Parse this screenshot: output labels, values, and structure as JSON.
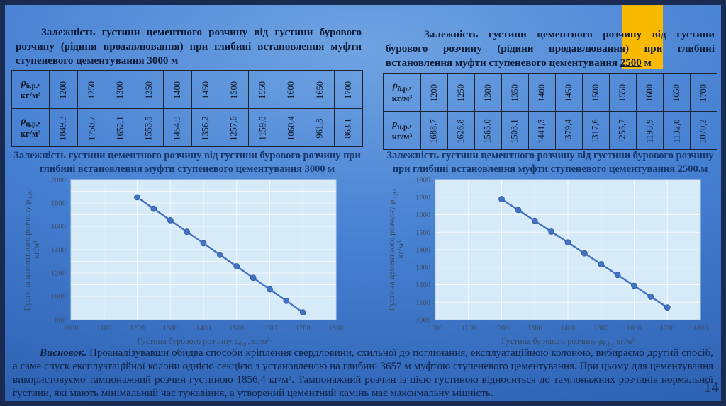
{
  "slide": {
    "page_number": "14"
  },
  "colors": {
    "accent_bar": "#F9B900",
    "frame": "#1A2B52",
    "series_line": "#4472C4",
    "plot_background": "#D7EAF7"
  },
  "left_panel": {
    "table_title": "Залежність густини цементного розчину від густини бурового розчину (рідини продавлювання) при глибині встановлення муфти ступеневого цементування 3000 м",
    "chart_title": "Залежність густини цементного розчину від густини бурового розчину при глибині встановлення муфти ступеневого цементування 3000 м"
  },
  "right_panel": {
    "table_title_before": "Залежність густини цементного розчину від густини бурового розчину (рідини продавлювання) при глибині встановлення муфти ступеневого цементування ",
    "table_title_underlined": "2500",
    "table_title_after": " м",
    "chart_title": "Залежність густини цементного розчину від густини бурового розчину при глибині встановлення муфти ступеневого цементування 2500.м"
  },
  "tables": [
    {
      "id": "left",
      "header_row1": {
        "sym": "ρ",
        "sub": "б.р.",
        "unit": "кг/м³"
      },
      "header_row2": {
        "sym": "ρ",
        "sub": "ц.р.",
        "unit": "кг/м³"
      },
      "row1_values": [
        "1200",
        "1250",
        "1300",
        "1350",
        "1400",
        "1450",
        "1500",
        "1550",
        "1600",
        "1650",
        "1700"
      ],
      "row2_values": [
        "1849,3",
        "1750,7",
        "1652,1",
        "1553,5",
        "1454,9",
        "1356,2",
        "1257,6",
        "1159,0",
        "1060,4",
        "961,8",
        "863,1"
      ]
    },
    {
      "id": "right",
      "header_row1": {
        "sym": "ρ",
        "sub": "б.р.",
        "unit": "кг/м³"
      },
      "header_row2": {
        "sym": "ρ",
        "sub": "ц.р.",
        "unit": "кг/м³"
      },
      "row1_values": [
        "1200",
        "1250",
        "1300",
        "1350",
        "1400",
        "1450",
        "1500",
        "1550",
        "1600",
        "1650",
        "1700"
      ],
      "row2_values": [
        "1688,7",
        "1626,8",
        "1565,0",
        "1503,1",
        "1441,3",
        "1379,4",
        "1317,6",
        "1255,7",
        "1193,9",
        "1132,0",
        "1070,2"
      ]
    }
  ],
  "conclusion": {
    "label": "Висновок.",
    "text": "Проаналізувавши обидва способи кріплення свердловини, схильної до поглинання, експлуатаційною колоною, вибираємо другий спосіб, а саме спуск експлуатаційної колони однією секцією з установленою на глибині 3657 м муфтою ступеневого цементування. При цьому для цементування використовуємо тампонажний розчин густиною 1856,4 кг/м³. Тампонажний розчин із цією густиною відноситься до тампонажних розчинів нормальної густини, які мають мінімальний час тужавіння, а утворений цементний камінь має максимальну міцність."
  },
  "chart_data": [
    {
      "type": "line",
      "title": "Залежність густини цементного розчину від густини бурового розчину при глибині встановлення муфти ступеневого цементування 3000 м",
      "x": [
        1200,
        1250,
        1300,
        1350,
        1400,
        1450,
        1500,
        1550,
        1600,
        1650,
        1700
      ],
      "y": [
        1849.3,
        1750.7,
        1652.1,
        1553.5,
        1454.9,
        1356.2,
        1257.6,
        1159.0,
        1060.4,
        961.8,
        863.1
      ],
      "xlim": [
        1000,
        1800
      ],
      "ylim": [
        800,
        2000
      ],
      "x_ticks": [
        1000,
        1100,
        1200,
        1300,
        1400,
        1500,
        1600,
        1700,
        1800
      ],
      "y_ticks": [
        800,
        1000,
        1200,
        1400,
        1600,
        1800,
        2000
      ],
      "grid_step": 100,
      "grid": true,
      "legend": "none",
      "xlabel_main": "Густина бурового розчину ρ",
      "xlabel_sub": "б.р.",
      "xlabel_rest": ", кг/м³",
      "ylabel_main": "Густина цементного розчину ρ",
      "ylabel_sub": "ц.р.",
      "ylabel_rest": ",",
      "ylabel_line2": "кг/м³",
      "line_color": "#4472C4",
      "marker_stroke": "#2F5597",
      "plot_bg": "#D7EAF7"
    },
    {
      "type": "line",
      "title": "Залежність густини цементного розчину від густини бурового розчину при глибині встановлення муфти ступеневого цементування 2500 м",
      "x": [
        1200,
        1250,
        1300,
        1350,
        1400,
        1450,
        1500,
        1550,
        1600,
        1650,
        1700
      ],
      "y": [
        1688.7,
        1626.8,
        1565.0,
        1503.1,
        1441.3,
        1379.4,
        1317.6,
        1255.7,
        1193.9,
        1132.0,
        1070.2
      ],
      "xlim": [
        1000,
        1800
      ],
      "ylim": [
        1000,
        1800
      ],
      "x_ticks": [
        1000,
        1100,
        1200,
        1300,
        1400,
        1500,
        1600,
        1700,
        1800
      ],
      "y_ticks": [
        1000,
        1100,
        1200,
        1300,
        1400,
        1500,
        1600,
        1700,
        1800
      ],
      "grid_step": 100,
      "grid": true,
      "legend": "none",
      "xlabel_main": "Густина бурового розчину ρ",
      "xlabel_sub": "б.р.",
      "xlabel_rest": ", кг/м³",
      "ylabel_main": "Густина цементного розчину ρ",
      "ylabel_sub": "ц.р.",
      "ylabel_rest": ",",
      "ylabel_line2": "кг/м³",
      "line_color": "#4472C4",
      "marker_stroke": "#2F5597",
      "plot_bg": "#D7EAF7"
    }
  ]
}
